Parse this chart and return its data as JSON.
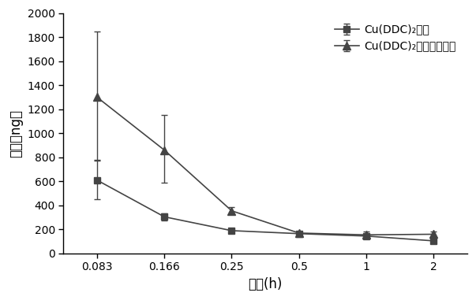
{
  "x_vals": [
    0.083,
    0.166,
    0.25,
    0.5,
    1,
    2
  ],
  "x_labels": [
    "0.083",
    "0.166",
    "0.25",
    "0.5",
    "1",
    "2"
  ],
  "solution_y": [
    610,
    305,
    190,
    165,
    145,
    105
  ],
  "solution_yerr_low": [
    160,
    30,
    15,
    15,
    20,
    15
  ],
  "solution_yerr_high": [
    160,
    30,
    15,
    15,
    20,
    15
  ],
  "nano_y": [
    1300,
    860,
    355,
    170,
    155,
    160
  ],
  "nano_yerr_low": [
    520,
    270,
    25,
    15,
    25,
    25
  ],
  "nano_yerr_high": [
    550,
    290,
    30,
    15,
    25,
    25
  ],
  "ylim": [
    0,
    2000
  ],
  "yticks": [
    0,
    200,
    400,
    600,
    800,
    1000,
    1200,
    1400,
    1600,
    1800,
    2000
  ],
  "xlabel": "时间(h)",
  "ylabel": "浓度（ng）",
  "label_solution": "Cu(DDC)₂溶液",
  "label_nano": "Cu(DDC)₂纳米核脂质体",
  "line_color": "#444444",
  "background_color": "#ffffff",
  "fontsize_axis_label": 12,
  "fontsize_tick": 10,
  "fontsize_legend": 10
}
